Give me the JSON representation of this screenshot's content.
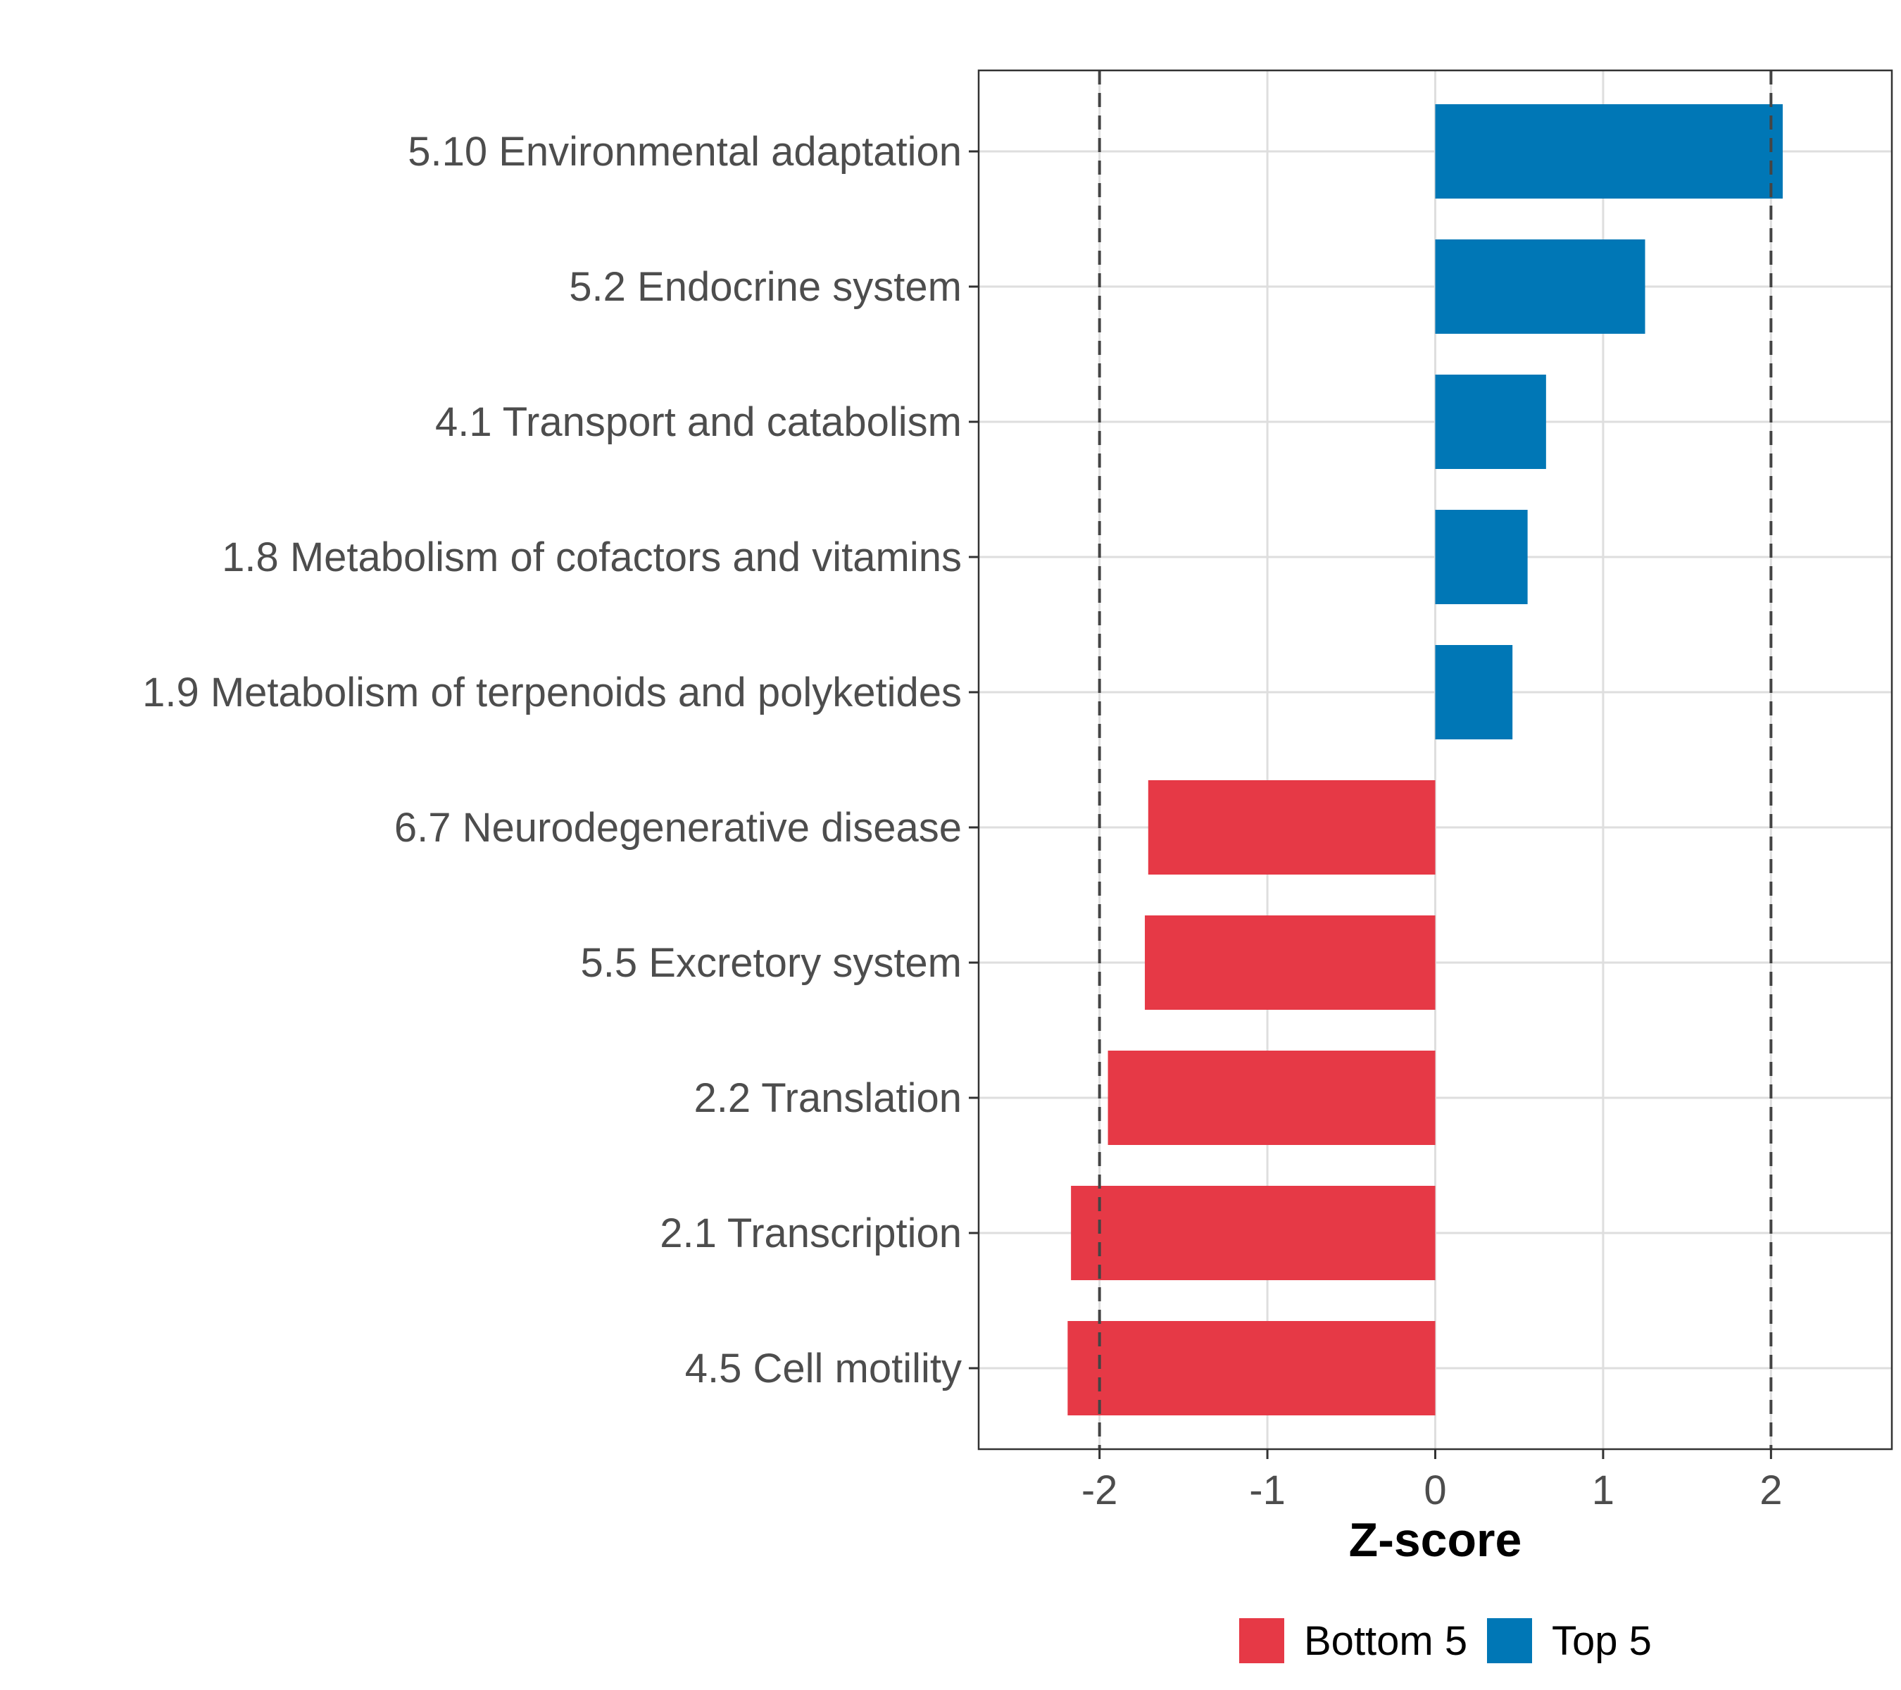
{
  "chart_data": {
    "type": "bar",
    "orientation": "horizontal",
    "categories": [
      "5.10 Environmental adaptation",
      "5.2 Endocrine system",
      "4.1 Transport and catabolism",
      "1.8 Metabolism of cofactors and vitamins",
      "1.9 Metabolism of terpenoids and polyketides",
      "6.7 Neurodegenerative disease",
      "5.5 Excretory system",
      "2.2 Translation",
      "2.1 Transcription",
      "4.5 Cell motility"
    ],
    "values": [
      2.07,
      1.25,
      0.66,
      0.55,
      0.46,
      -1.71,
      -1.73,
      -1.95,
      -2.17,
      -2.19
    ],
    "groups": [
      "Top 5",
      "Top 5",
      "Top 5",
      "Top 5",
      "Top 5",
      "Bottom 5",
      "Bottom 5",
      "Bottom 5",
      "Bottom 5",
      "Bottom 5"
    ],
    "xlabel": "Z-score",
    "ylabel": "",
    "xlim": [
      -2.72,
      2.72
    ],
    "xticks": [
      -2,
      -1,
      0,
      1,
      2
    ],
    "xtick_labels": [
      "-2",
      "-1",
      "0",
      "1",
      "2"
    ],
    "reference_lines": [
      -2,
      2
    ],
    "grid": true,
    "legend": {
      "position": "bottom",
      "items": [
        {
          "label": "Bottom 5",
          "color": "#e63946"
        },
        {
          "label": "Top 5",
          "color": "#0077b6"
        }
      ]
    }
  }
}
